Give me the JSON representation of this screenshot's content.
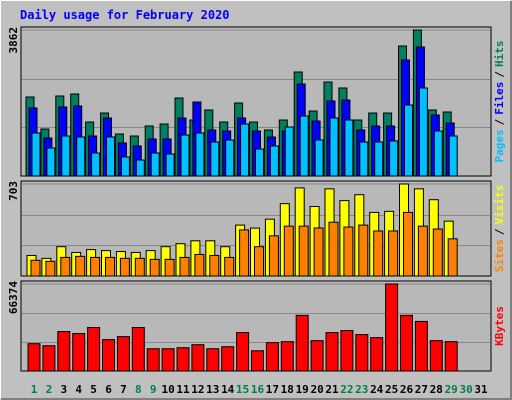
{
  "title": "Daily usage for February 2020",
  "legend_separator": "/",
  "chart_data": [
    {
      "type": "bar",
      "ylim": [
        0,
        3862
      ],
      "yticks": [
        3862
      ],
      "series": [
        {
          "name": "Hits",
          "color": "#008060",
          "values": [
            2090,
            1243,
            2116,
            2169,
            1428,
            1666,
            1111,
            1058,
            1323,
            1375,
            2063,
            1481,
            1746,
            1428,
            1931,
            1428,
            1217,
            1481,
            2751,
            1719,
            2486,
            2328,
            1481,
            1666,
            1666,
            3439,
            3862,
            1746,
            1693,
            null,
            null
          ]
        },
        {
          "name": "Files",
          "color": "#0000ff",
          "values": [
            1799,
            1005,
            1825,
            1852,
            1058,
            1534,
            873,
            794,
            979,
            979,
            1534,
            1957,
            1217,
            1190,
            1534,
            1190,
            1032,
            1190,
            2433,
            1455,
            1984,
            2010,
            1217,
            1323,
            1323,
            3068,
            3412,
            1613,
            1402,
            null,
            null
          ]
        },
        {
          "name": "Pages",
          "color": "#00c0ff",
          "values": [
            1137,
            741,
            1058,
            1032,
            608,
            1032,
            503,
            423,
            608,
            582,
            1084,
            1137,
            899,
            952,
            1375,
            714,
            794,
            1296,
            1587,
            952,
            1534,
            1481,
            899,
            899,
            926,
            1878,
            2328,
            1190,
            1058,
            null,
            null
          ]
        }
      ]
    },
    {
      "type": "bar",
      "ylim": [
        0,
        703
      ],
      "yticks": [
        703
      ],
      "series": [
        {
          "name": "Visits",
          "color": "#ffff00",
          "values": [
            157,
            135,
            224,
            180,
            202,
            194,
            187,
            180,
            194,
            224,
            247,
            269,
            269,
            224,
            389,
            366,
            434,
            553,
            673,
            531,
            666,
            576,
            621,
            486,
            494,
            703,
            666,
            583,
            419,
            null,
            null
          ]
        },
        {
          "name": "Sites",
          "color": "#ff8000",
          "values": [
            120,
            112,
            142,
            150,
            142,
            142,
            135,
            135,
            127,
            127,
            142,
            165,
            157,
            142,
            352,
            224,
            307,
            381,
            381,
            367,
            411,
            374,
            389,
            344,
            344,
            486,
            381,
            359,
            284,
            null,
            null
          ]
        }
      ]
    },
    {
      "type": "bar",
      "ylim": [
        0,
        66374
      ],
      "yticks": [
        66374
      ],
      "categories": [
        "1",
        "2",
        "3",
        "4",
        "5",
        "6",
        "7",
        "8",
        "9",
        "10",
        "11",
        "12",
        "13",
        "14",
        "15",
        "16",
        "17",
        "18",
        "19",
        "20",
        "21",
        "22",
        "23",
        "24",
        "25",
        "26",
        "27",
        "28",
        "29",
        "30",
        "31"
      ],
      "highlight_categories": [
        "1",
        "2",
        "8",
        "9",
        "15",
        "16",
        "22",
        "23",
        "29",
        "30"
      ],
      "highlight_color": "#008040",
      "series": [
        {
          "name": "KBytes",
          "color": "#ff0000",
          "values": [
            20838,
            19295,
            30100,
            28557,
            33187,
            23926,
            26241,
            33187,
            16980,
            16980,
            17751,
            20067,
            16980,
            18523,
            29328,
            15436,
            21610,
            22382,
            42449,
            23154,
            29328,
            30872,
            27785,
            25469,
            66374,
            42449,
            37818,
            23154,
            22382,
            null,
            null
          ]
        }
      ]
    }
  ]
}
